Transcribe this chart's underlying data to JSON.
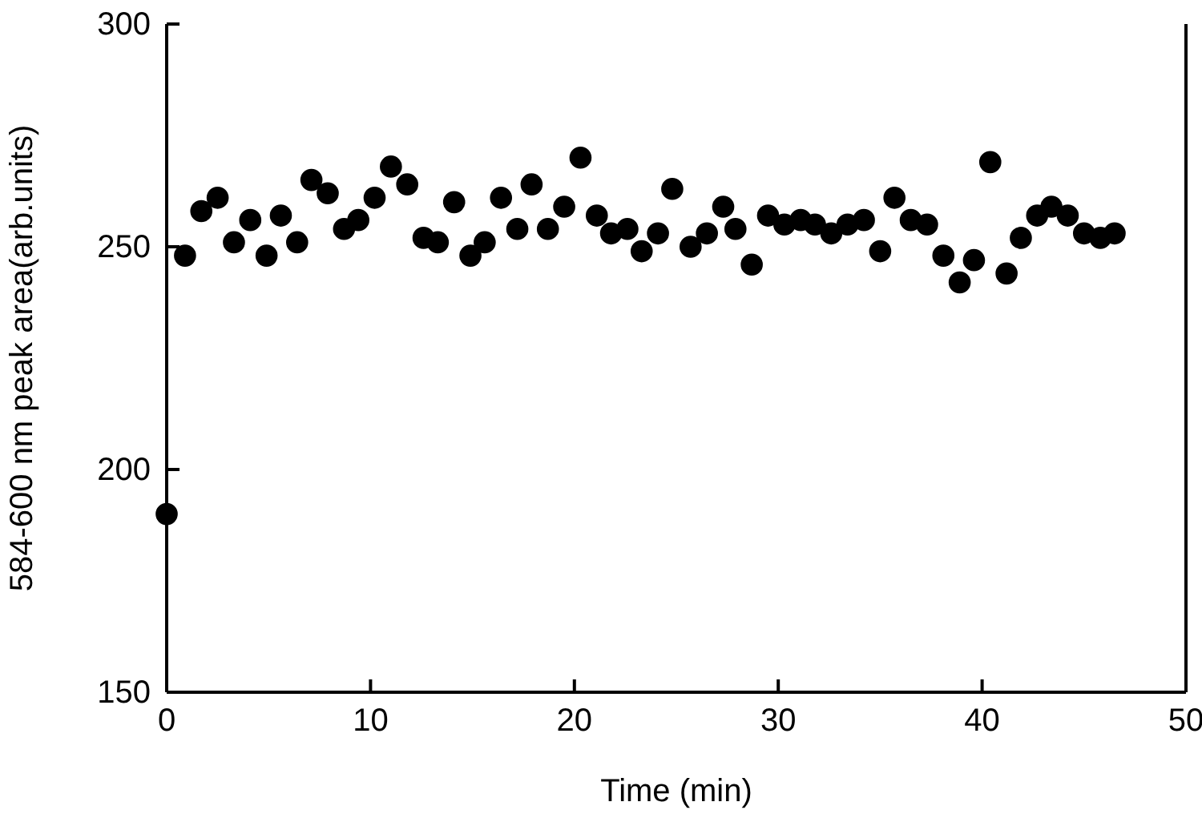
{
  "chart_data": {
    "type": "scatter",
    "xlabel": "Time (min)",
    "ylabel": "584-600 nm peak area(arb.units)",
    "xlim": [
      0,
      50
    ],
    "xticks": [
      0,
      10,
      20,
      30,
      40,
      50
    ],
    "ylim": [
      150,
      300
    ],
    "yticks": [
      150,
      200,
      250,
      300
    ],
    "marker": "circle",
    "series": [
      {
        "color": "#000000",
        "x": [
          0,
          0.9,
          1.7,
          2.5,
          3.3,
          4.1,
          4.9,
          5.6,
          6.4,
          7.1,
          7.9,
          8.7,
          9.4,
          10.2,
          11.0,
          11.8,
          12.6,
          13.3,
          14.1,
          14.9,
          15.6,
          16.4,
          17.2,
          17.9,
          18.7,
          19.5,
          20.3,
          21.1,
          21.8,
          22.6,
          23.3,
          24.1,
          24.8,
          25.7,
          26.5,
          27.3,
          27.9,
          28.7,
          29.5,
          30.3,
          31.1,
          31.8,
          32.6,
          33.4,
          34.2,
          35.0,
          35.7,
          36.5,
          37.3,
          38.1,
          38.9,
          39.6,
          40.4,
          41.2,
          41.9,
          42.7,
          43.4,
          44.2,
          45.0,
          45.8,
          46.5
        ],
        "values": [
          190,
          248,
          258,
          261,
          251,
          256,
          248,
          257,
          251,
          265,
          262,
          254,
          256,
          261,
          268,
          264,
          252,
          251,
          260,
          248,
          251,
          261,
          254,
          264,
          254,
          259,
          270,
          257,
          253,
          254,
          249,
          253,
          263,
          250,
          253,
          259,
          254,
          246,
          257,
          255,
          256,
          255,
          253,
          255,
          256,
          249,
          261,
          256,
          255,
          248,
          242,
          247,
          269,
          244,
          252,
          257,
          259,
          257,
          253,
          252,
          253
        ]
      }
    ]
  }
}
